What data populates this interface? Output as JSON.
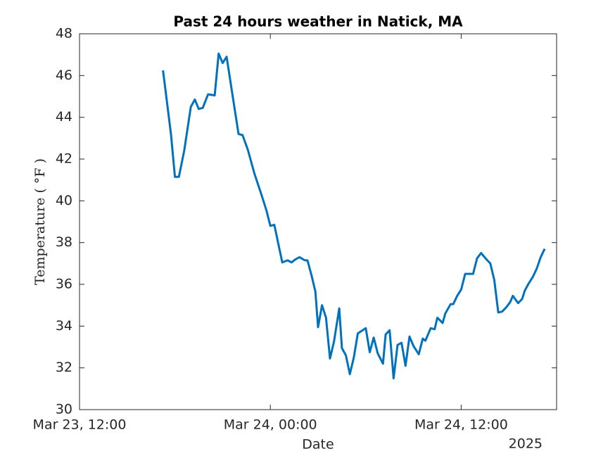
{
  "chart_data": {
    "type": "line",
    "title": "Past 24 hours weather in Natick, MA",
    "x_label": "Date",
    "y_label": "Temperature ( °F )",
    "x_secondary_label": "2025",
    "xlim": [
      "2025-03-23T12:00",
      "2025-03-24T18:00"
    ],
    "xticks": [
      {
        "value": "2025-03-23T12:00",
        "label": "Mar 23, 12:00"
      },
      {
        "value": "2025-03-24T00:00",
        "label": "Mar 24, 00:00"
      },
      {
        "value": "2025-03-24T12:00",
        "label": "Mar 24, 12:00"
      }
    ],
    "ylim": [
      30,
      48
    ],
    "yticks": [
      30,
      32,
      34,
      36,
      38,
      40,
      42,
      44,
      46,
      48
    ],
    "grid": false,
    "x": [
      "2025-03-23T17:15",
      "2025-03-23T17:45",
      "2025-03-23T18:00",
      "2025-03-23T18:15",
      "2025-03-23T18:35",
      "2025-03-23T19:00",
      "2025-03-23T19:15",
      "2025-03-23T19:30",
      "2025-03-23T19:45",
      "2025-03-23T20:05",
      "2025-03-23T20:30",
      "2025-03-23T20:45",
      "2025-03-23T21:00",
      "2025-03-23T21:15",
      "2025-03-23T21:35",
      "2025-03-23T22:00",
      "2025-03-23T22:15",
      "2025-03-23T22:35",
      "2025-03-23T23:00",
      "2025-03-23T23:25",
      "2025-03-23T23:45",
      "2025-03-24T00:00",
      "2025-03-24T00:15",
      "2025-03-24T00:30",
      "2025-03-24T00:45",
      "2025-03-24T01:05",
      "2025-03-24T01:20",
      "2025-03-24T01:35",
      "2025-03-24T01:50",
      "2025-03-24T02:10",
      "2025-03-24T02:20",
      "2025-03-24T02:35",
      "2025-03-24T02:50",
      "2025-03-24T03:00",
      "2025-03-24T03:15",
      "2025-03-24T03:30",
      "2025-03-24T03:45",
      "2025-03-24T04:00",
      "2025-03-24T04:20",
      "2025-03-24T04:30",
      "2025-03-24T04:45",
      "2025-03-24T05:00",
      "2025-03-24T05:15",
      "2025-03-24T05:30",
      "2025-03-24T06:00",
      "2025-03-24T06:15",
      "2025-03-24T06:30",
      "2025-03-24T06:45",
      "2025-03-24T07:05",
      "2025-03-24T07:15",
      "2025-03-24T07:30",
      "2025-03-24T07:45",
      "2025-03-24T08:00",
      "2025-03-24T08:15",
      "2025-03-24T08:30",
      "2025-03-24T08:45",
      "2025-03-24T09:00",
      "2025-03-24T09:20",
      "2025-03-24T09:35",
      "2025-03-24T09:45",
      "2025-03-24T10:05",
      "2025-03-24T10:20",
      "2025-03-24T10:30",
      "2025-03-24T10:50",
      "2025-03-24T11:00",
      "2025-03-24T11:20",
      "2025-03-24T11:30",
      "2025-03-24T11:45",
      "2025-03-24T12:00",
      "2025-03-24T12:15",
      "2025-03-24T12:30",
      "2025-03-24T12:45",
      "2025-03-24T13:00",
      "2025-03-24T13:15",
      "2025-03-24T13:35",
      "2025-03-24T13:50",
      "2025-03-24T14:05",
      "2025-03-24T14:20",
      "2025-03-24T14:35",
      "2025-03-24T14:50",
      "2025-03-24T15:05",
      "2025-03-24T15:15",
      "2025-03-24T15:35",
      "2025-03-24T15:50",
      "2025-03-24T16:00",
      "2025-03-24T16:15",
      "2025-03-24T16:30",
      "2025-03-24T16:45",
      "2025-03-24T17:00",
      "2025-03-24T17:15"
    ],
    "series": [
      {
        "color": "#0072bd",
        "values": [
          46.25,
          43.2,
          41.15,
          41.15,
          42.4,
          44.5,
          44.85,
          44.4,
          44.45,
          45.1,
          45.05,
          47.05,
          46.6,
          46.9,
          45.25,
          43.2,
          43.15,
          42.45,
          41.3,
          40.35,
          39.55,
          38.8,
          38.85,
          37.95,
          37.05,
          37.15,
          37.05,
          37.2,
          37.3,
          37.15,
          37.15,
          36.45,
          35.65,
          33.95,
          35.0,
          34.4,
          32.45,
          33.25,
          34.85,
          32.95,
          32.6,
          31.7,
          32.5,
          33.65,
          33.9,
          32.75,
          33.45,
          32.7,
          32.2,
          33.6,
          33.8,
          31.5,
          33.1,
          33.2,
          32.1,
          33.5,
          33.05,
          32.65,
          33.4,
          33.3,
          33.9,
          33.85,
          34.4,
          34.15,
          34.6,
          35.05,
          35.05,
          35.45,
          35.75,
          36.5,
          36.5,
          36.5,
          37.25,
          37.5,
          37.2,
          37.0,
          36.2,
          34.65,
          34.7,
          34.9,
          35.15,
          35.45,
          35.1,
          35.3,
          35.7,
          36.05,
          36.35,
          36.75,
          37.3,
          37.7
        ]
      }
    ]
  }
}
